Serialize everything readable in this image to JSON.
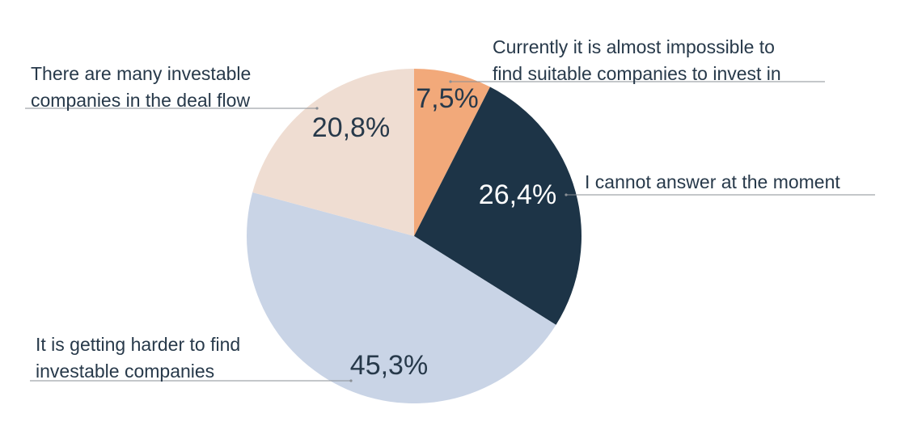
{
  "chart_data": {
    "type": "pie",
    "slices": [
      {
        "label": "Currently it is almost impossible to find suitable companies to invest in",
        "value": 7.5,
        "value_label": "7,5%",
        "color": "#f2a97a",
        "text_color": "#27394a"
      },
      {
        "label": "I cannot answer at the moment",
        "value": 26.4,
        "value_label": "26,4%",
        "color": "#1d3447",
        "text_color": "#ffffff"
      },
      {
        "label": "It is getting harder to find investable companies",
        "value": 45.3,
        "value_label": "45,3%",
        "color": "#c9d4e6",
        "text_color": "#27394a"
      },
      {
        "label": "There are many investable companies in the deal flow",
        "value": 20.8,
        "value_label": "20,8%",
        "color": "#efddd2",
        "text_color": "#27394a"
      }
    ]
  },
  "annotations": [
    {
      "slice": 0,
      "lines": [
        "Currently it is almost impossible to",
        "find suitable companies to invest in"
      ]
    },
    {
      "slice": 1,
      "lines": [
        "I cannot answer at the moment"
      ]
    },
    {
      "slice": 2,
      "lines": [
        "It is getting harder to find",
        "investable companies"
      ]
    },
    {
      "slice": 3,
      "lines": [
        "There are many investable",
        "companies in the deal flow"
      ]
    }
  ],
  "colors": {
    "label_text": "#27394a",
    "leader_line": "#8a8f96"
  }
}
